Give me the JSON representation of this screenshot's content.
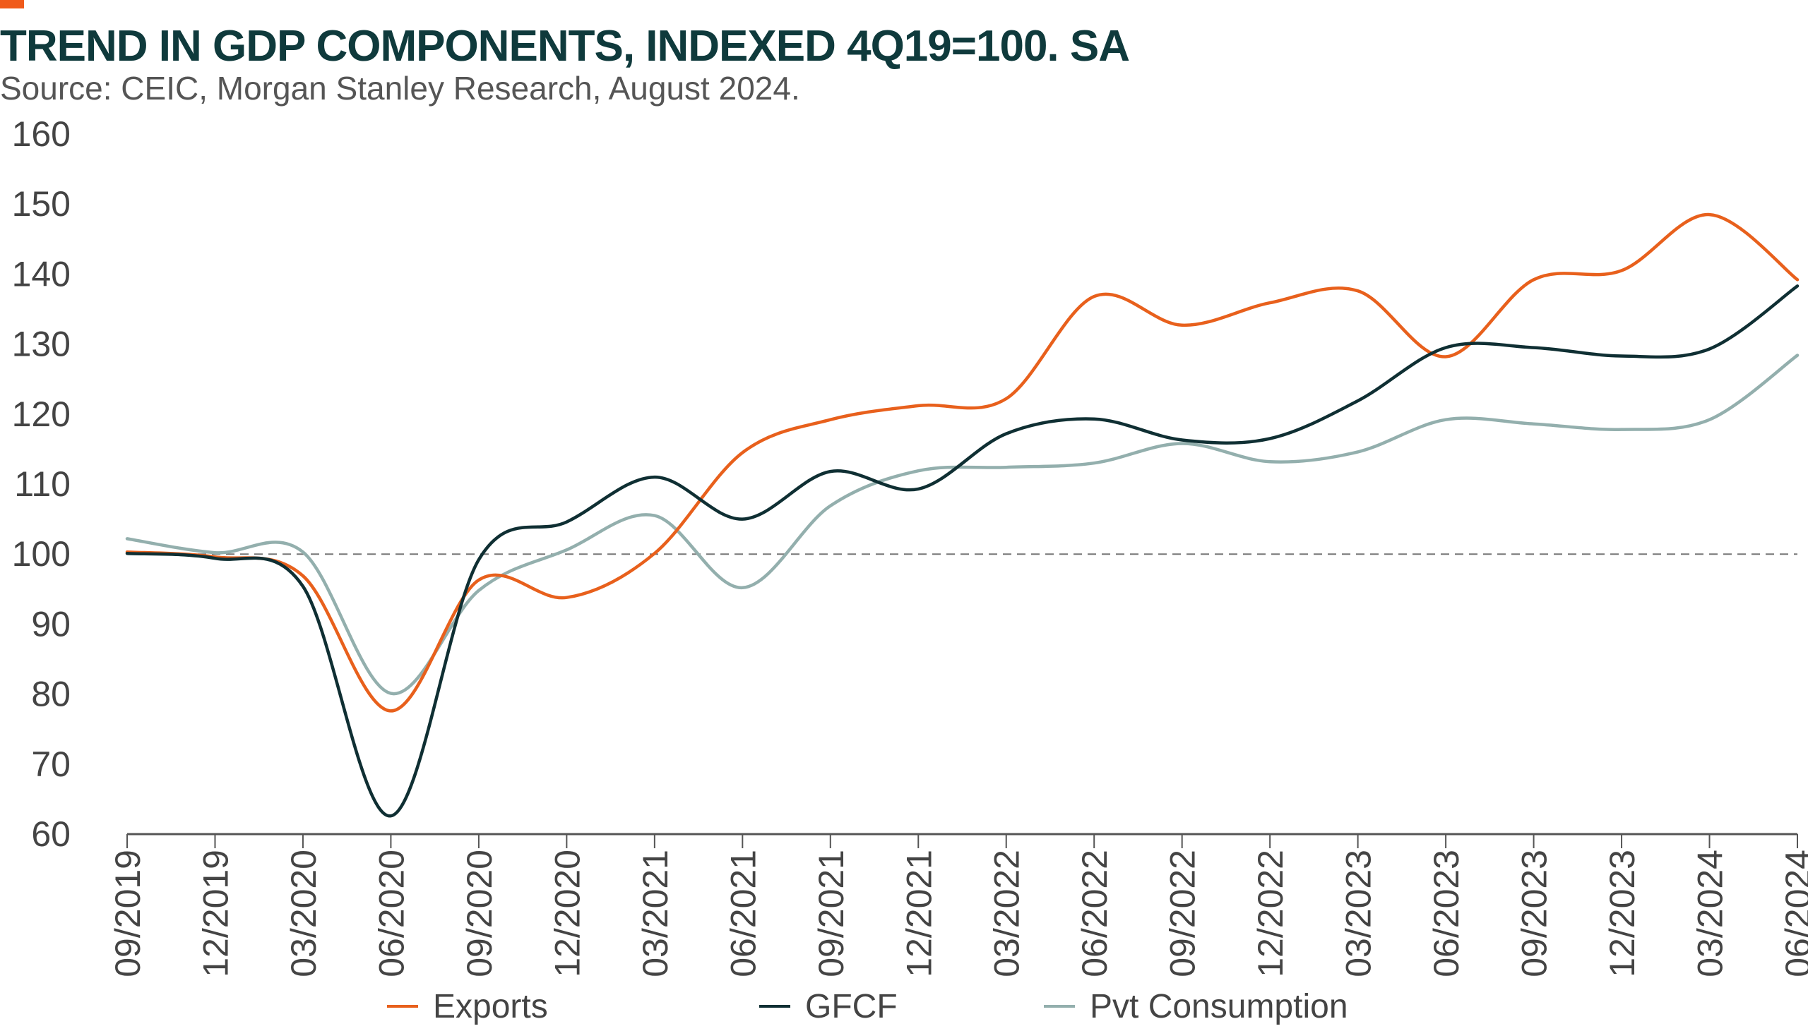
{
  "header": {
    "title": "TREND IN GDP COMPONENTS, INDEXED 4Q19=100. SA",
    "subtitle": "Source: CEIC, Morgan Stanley Research, August 2024."
  },
  "colors": {
    "accent": "#F05A1A",
    "exports": "#E8601C",
    "gfcf": "#0F2F33",
    "pvt_consumption": "#93AFAD",
    "reference_line": "#777777",
    "axis": "#555555"
  },
  "chart_data": {
    "type": "line",
    "x": [
      "09/2019",
      "12/2019",
      "03/2020",
      "06/2020",
      "09/2020",
      "12/2020",
      "03/2021",
      "06/2021",
      "09/2021",
      "12/2021",
      "03/2022",
      "06/2022",
      "09/2022",
      "12/2022",
      "03/2023",
      "06/2023",
      "09/2023",
      "12/2023",
      "03/2024",
      "06/2024"
    ],
    "y_ticks": [
      160,
      150,
      140,
      130,
      120,
      110,
      100,
      90,
      80,
      70,
      60
    ],
    "ylim": [
      60,
      160
    ],
    "reference_value": 100,
    "grid": false,
    "legend_position": "bottom",
    "series": [
      {
        "name": "Exports",
        "color_key": "exports",
        "values": [
          100.3,
          99.6,
          96.9,
          77.6,
          96.3,
          93.8,
          100.1,
          114.5,
          119.2,
          121.2,
          122.2,
          136.8,
          132.7,
          135.9,
          137.6,
          128.2,
          139.2,
          140.5,
          148.5,
          139.2
        ]
      },
      {
        "name": "GFCF",
        "color_key": "gfcf",
        "values": [
          100.1,
          99.4,
          95.4,
          62.6,
          99.2,
          104.6,
          111.0,
          105.0,
          111.8,
          109.3,
          117.2,
          119.3,
          116.3,
          116.5,
          121.9,
          129.5,
          129.5,
          128.3,
          129.3,
          138.3
        ]
      },
      {
        "name": "Pvt Consumption",
        "color_key": "pvt_consumption",
        "values": [
          102.2,
          100.2,
          100.3,
          80.1,
          94.8,
          100.6,
          105.5,
          95.2,
          106.9,
          111.9,
          112.4,
          113.0,
          115.8,
          113.2,
          114.6,
          119.2,
          118.6,
          117.8,
          119.2,
          128.4
        ]
      }
    ]
  }
}
